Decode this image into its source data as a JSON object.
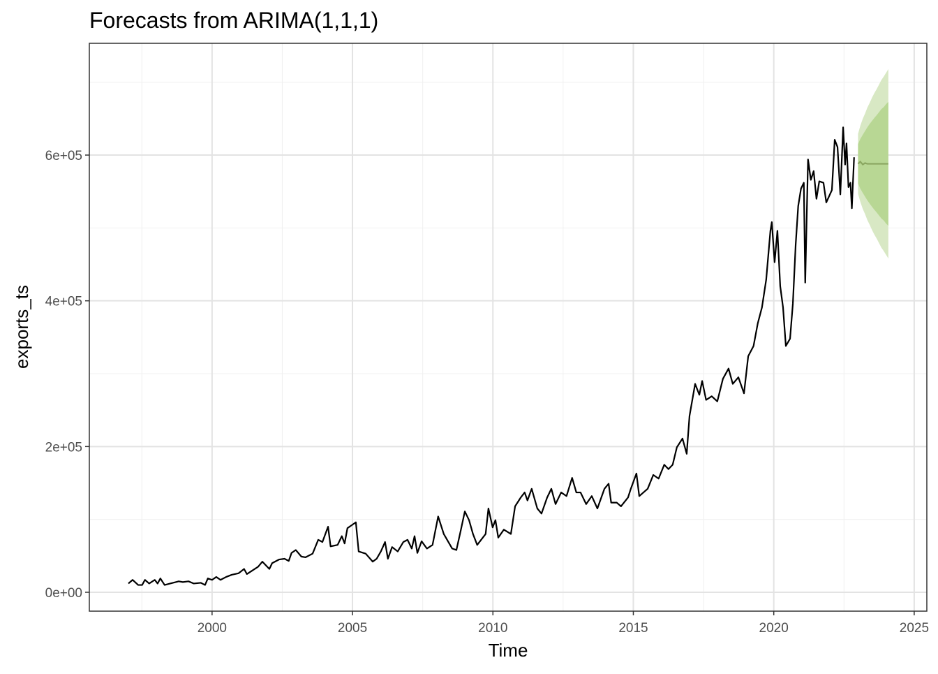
{
  "chart_data": {
    "type": "forecast",
    "title": "Forecasts from ARIMA(1,1,1)",
    "x_label": "Time",
    "y_label": "exports_ts",
    "xlim": [
      1995.63,
      2025.45
    ],
    "ylim": [
      -25900,
      753400
    ],
    "xticks": [
      2000,
      2005,
      2010,
      2015,
      2020,
      2025
    ],
    "yticks": [
      {
        "value": 0,
        "label": "0e+00"
      },
      {
        "value": 200000,
        "label": "2e+05"
      },
      {
        "value": 400000,
        "label": "4e+05"
      },
      {
        "value": 600000,
        "label": "6e+05"
      }
    ],
    "grid": true,
    "color": "#000000",
    "x": [
      1997.02,
      1997.17,
      1997.37,
      1997.51,
      1997.61,
      1997.76,
      1997.96,
      1998.06,
      1998.16,
      1998.31,
      1998.51,
      1998.81,
      1998.96,
      1999.16,
      1999.35,
      1999.6,
      1999.75,
      1999.85,
      2000.0,
      2000.15,
      2000.3,
      2000.5,
      2000.7,
      2000.94,
      2001.14,
      2001.24,
      2001.44,
      2001.64,
      2001.79,
      2002.04,
      2002.14,
      2002.39,
      2002.58,
      2002.73,
      2002.83,
      2002.98,
      2003.18,
      2003.33,
      2003.58,
      2003.78,
      2003.93,
      2004.13,
      2004.22,
      2004.47,
      2004.62,
      2004.72,
      2004.82,
      2004.97,
      2005.12,
      2005.22,
      2005.47,
      2005.72,
      2005.86,
      2006.01,
      2006.16,
      2006.26,
      2006.41,
      2006.61,
      2006.81,
      2006.96,
      2007.11,
      2007.21,
      2007.31,
      2007.46,
      2007.65,
      2007.85,
      2008.05,
      2008.25,
      2008.55,
      2008.7,
      2008.85,
      2009.0,
      2009.15,
      2009.29,
      2009.44,
      2009.74,
      2009.84,
      2009.99,
      2010.09,
      2010.19,
      2010.39,
      2010.64,
      2010.79,
      2010.99,
      2011.13,
      2011.23,
      2011.38,
      2011.58,
      2011.73,
      2011.93,
      2012.08,
      2012.23,
      2012.43,
      2012.62,
      2012.82,
      2012.97,
      2013.12,
      2013.32,
      2013.52,
      2013.72,
      2013.97,
      2014.12,
      2014.21,
      2014.41,
      2014.56,
      2014.81,
      2014.91,
      2015.11,
      2015.21,
      2015.51,
      2015.71,
      2015.9,
      2016.1,
      2016.25,
      2016.4,
      2016.55,
      2016.75,
      2016.9,
      2017.0,
      2017.2,
      2017.35,
      2017.45,
      2017.59,
      2017.79,
      2017.99,
      2018.19,
      2018.39,
      2018.54,
      2018.74,
      2018.94,
      2019.09,
      2019.28,
      2019.43,
      2019.58,
      2019.73,
      2019.88,
      2019.93,
      2020.03,
      2020.13,
      2020.23,
      2020.33,
      2020.43,
      2020.58,
      2020.68,
      2020.78,
      2020.87,
      2020.97,
      2021.07,
      2021.12,
      2021.22,
      2021.32,
      2021.42,
      2021.52,
      2021.62,
      2021.77,
      2021.87,
      2022.07,
      2022.17,
      2022.27,
      2022.37,
      2022.47,
      2022.54,
      2022.59,
      2022.66,
      2022.73,
      2022.78,
      2022.81,
      2022.86
    ],
    "values": [
      12000,
      17000,
      10000,
      10000,
      17000,
      12000,
      17000,
      12000,
      19000,
      10000,
      12000,
      15000,
      14000,
      15000,
      12000,
      13000,
      10000,
      19000,
      17000,
      21000,
      17000,
      21000,
      24000,
      26000,
      32000,
      25000,
      30000,
      35000,
      42000,
      32000,
      40000,
      45000,
      46000,
      43000,
      54000,
      58000,
      49000,
      48000,
      53000,
      72000,
      69000,
      90000,
      63000,
      65000,
      77000,
      67000,
      88000,
      92000,
      96000,
      56000,
      53000,
      42000,
      46000,
      56000,
      69000,
      46000,
      62000,
      56000,
      69000,
      72000,
      60000,
      77000,
      54000,
      70000,
      60000,
      65000,
      104000,
      80000,
      60000,
      58000,
      84000,
      111000,
      99000,
      80000,
      65000,
      80000,
      115000,
      89000,
      99000,
      75000,
      86000,
      80000,
      118000,
      130000,
      137000,
      126000,
      142000,
      115000,
      108000,
      130000,
      142000,
      121000,
      137000,
      132000,
      157000,
      137000,
      137000,
      121000,
      132000,
      115000,
      142000,
      149000,
      123000,
      123000,
      118000,
      130000,
      142000,
      163000,
      132000,
      142000,
      161000,
      156000,
      175000,
      169000,
      175000,
      199000,
      211000,
      190000,
      242000,
      286000,
      271000,
      290000,
      264000,
      269000,
      262000,
      293000,
      307000,
      286000,
      295000,
      273000,
      324000,
      338000,
      369000,
      391000,
      429000,
      496000,
      508000,
      453000,
      496000,
      420000,
      391000,
      338000,
      348000,
      396000,
      477000,
      530000,
      554000,
      562000,
      425000,
      594000,
      566000,
      578000,
      540000,
      564000,
      562000,
      535000,
      552000,
      621000,
      611000,
      546000,
      638000,
      587000,
      616000,
      556000,
      562000,
      527000,
      554000,
      597000
    ],
    "forecast": {
      "x": [
        2023.0,
        2023.08,
        2023.17,
        2023.25,
        2023.33,
        2023.42,
        2023.5,
        2023.58,
        2023.67,
        2023.75,
        2023.83,
        2023.92,
        2024.0,
        2024.08
      ],
      "mean": [
        588000,
        591000,
        587000,
        589000,
        588000,
        588000,
        588000,
        588000,
        588000,
        588000,
        588000,
        588000,
        588000,
        588000
      ],
      "lo80": [
        561000,
        554000,
        548000,
        543000,
        538000,
        533000,
        529000,
        525000,
        521000,
        517000,
        513000,
        510000,
        506000,
        503000
      ],
      "hi80": [
        615000,
        622000,
        628000,
        633000,
        638000,
        643000,
        647000,
        651000,
        655000,
        659000,
        663000,
        666000,
        670000,
        673000
      ],
      "lo95": [
        547000,
        536000,
        526000,
        519000,
        511000,
        504000,
        497000,
        491000,
        485000,
        479000,
        473000,
        468000,
        463000,
        458000
      ],
      "hi95": [
        629000,
        640000,
        650000,
        657000,
        665000,
        672000,
        679000,
        685000,
        691000,
        697000,
        703000,
        708000,
        713000,
        718000
      ],
      "mean_color": "#8aa660",
      "color80": "#b8d794",
      "color95": "#d8e8c4"
    }
  }
}
